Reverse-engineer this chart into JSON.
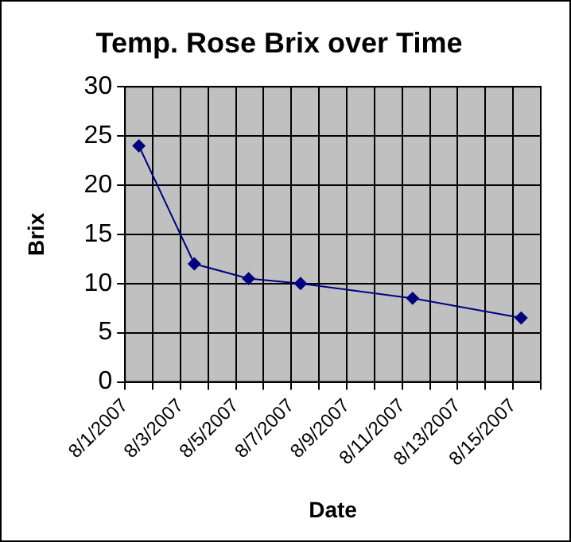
{
  "chart_data": {
    "type": "line",
    "title": "Temp. Rose Brix over Time",
    "xlabel": "Date",
    "ylabel": "Brix",
    "x": [
      "2007-08-01T12:00",
      "2007-08-03T12:00",
      "2007-08-05T11:00",
      "2007-08-07T08:00",
      "2007-08-11T09:00",
      "2007-08-15T07:00"
    ],
    "series": [
      {
        "color": "#000080",
        "values": [
          24,
          12,
          10.5,
          10,
          8.5,
          6.5
        ]
      }
    ],
    "xlim": [
      "2007-08-01",
      "2007-08-16"
    ],
    "xticks": [
      {
        "value": "2007-08-01",
        "label": "8/1/2007"
      },
      {
        "value": "2007-08-02",
        "label": null
      },
      {
        "value": "2007-08-03",
        "label": "8/3/2007"
      },
      {
        "value": "2007-08-04",
        "label": null
      },
      {
        "value": "2007-08-05",
        "label": "8/5/2007"
      },
      {
        "value": "2007-08-06",
        "label": null
      },
      {
        "value": "2007-08-07",
        "label": "8/7/2007"
      },
      {
        "value": "2007-08-08",
        "label": null
      },
      {
        "value": "2007-08-09",
        "label": "8/9/2007"
      },
      {
        "value": "2007-08-10",
        "label": null
      },
      {
        "value": "2007-08-11",
        "label": "8/11/2007"
      },
      {
        "value": "2007-08-12",
        "label": null
      },
      {
        "value": "2007-08-13",
        "label": "8/13/2007"
      },
      {
        "value": "2007-08-14",
        "label": null
      },
      {
        "value": "2007-08-15",
        "label": "8/15/2007"
      },
      {
        "value": "2007-08-16",
        "label": null
      }
    ],
    "ylim": [
      0,
      30
    ],
    "yticks": [
      0,
      5,
      10,
      15,
      20,
      25,
      30
    ],
    "grid": true,
    "legend": false,
    "marker": "diamond",
    "line_style": "solid"
  }
}
